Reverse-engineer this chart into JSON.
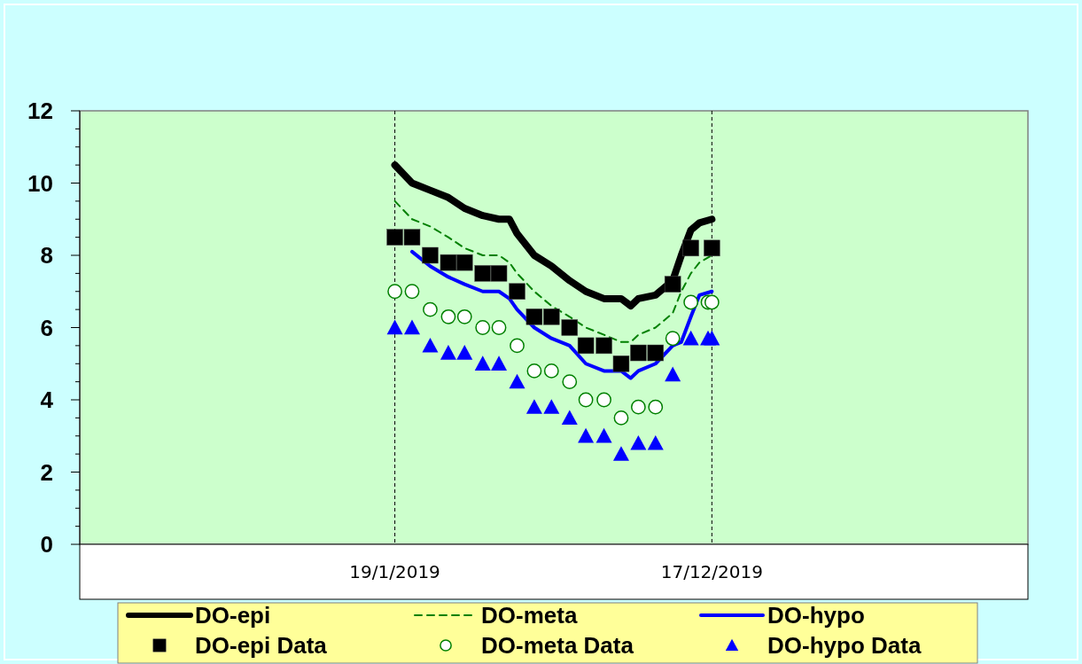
{
  "chart_data": {
    "type": "line",
    "xlim": [
      "2018-02-23",
      "2020-11-12"
    ],
    "xticks": [
      {
        "value": "2019-01-19",
        "label": "19/1/2019"
      },
      {
        "value": "2019-12-17",
        "label": "17/12/2019"
      }
    ],
    "ylim": [
      0,
      12
    ],
    "yticks": [
      0,
      {
        "value": 0.5,
        "label": null
      },
      {
        "value": 1,
        "label": null
      },
      {
        "value": 1.5,
        "label": null
      },
      2,
      {
        "value": 2.5,
        "label": null
      },
      {
        "value": 3,
        "label": null
      },
      {
        "value": 3.5,
        "label": null
      },
      4,
      {
        "value": 4.5,
        "label": null
      },
      {
        "value": 5,
        "label": null
      },
      {
        "value": 5.5,
        "label": null
      },
      6,
      {
        "value": 6.5,
        "label": null
      },
      {
        "value": 7,
        "label": null
      },
      {
        "value": 7.5,
        "label": null
      },
      8,
      {
        "value": 8.5,
        "label": null
      },
      {
        "value": 9,
        "label": null
      },
      {
        "value": 9.5,
        "label": null
      },
      10,
      {
        "value": 10.5,
        "label": null
      },
      {
        "value": 11,
        "label": null
      },
      {
        "value": 11.5,
        "label": null
      },
      12
    ],
    "grid": "x",
    "legend": "bottom",
    "series": [
      {
        "name": "DO-epi",
        "line_style": "solid",
        "color": "#000000",
        "x": [
          "2019-01-19",
          "2019-02-06",
          "2019-02-25",
          "2019-03-16",
          "2019-04-02",
          "2019-04-21",
          "2019-05-08",
          "2019-05-19",
          "2019-05-27",
          "2019-06-14",
          "2019-07-02",
          "2019-07-21",
          "2019-08-07",
          "2019-08-26",
          "2019-09-13",
          "2019-09-23",
          "2019-10-01",
          "2019-10-19",
          "2019-11-06",
          "2019-11-15",
          "2019-11-25",
          "2019-12-04",
          "2019-12-17"
        ],
        "values": [
          10.5,
          10.0,
          9.8,
          9.6,
          9.3,
          9.1,
          9.0,
          9.0,
          8.6,
          8.0,
          7.7,
          7.3,
          7.0,
          6.8,
          6.8,
          6.6,
          6.8,
          6.9,
          7.3,
          8.0,
          8.7,
          8.9,
          9.0
        ]
      },
      {
        "name": "DO-meta",
        "line_style": "dashed",
        "color": "#008000",
        "x": [
          "2019-01-19",
          "2019-02-06",
          "2019-02-25",
          "2019-03-16",
          "2019-04-02",
          "2019-04-21",
          "2019-05-08",
          "2019-05-19",
          "2019-05-27",
          "2019-06-14",
          "2019-07-02",
          "2019-07-21",
          "2019-08-07",
          "2019-08-26",
          "2019-09-13",
          "2019-09-23",
          "2019-10-01",
          "2019-10-19",
          "2019-11-06",
          "2019-11-15",
          "2019-11-25",
          "2019-12-04",
          "2019-12-17"
        ],
        "values": [
          9.5,
          9.0,
          8.8,
          8.5,
          8.2,
          8.0,
          8.0,
          7.8,
          7.5,
          7.0,
          6.6,
          6.3,
          6.0,
          5.8,
          5.6,
          5.6,
          5.8,
          6.0,
          6.4,
          7.0,
          7.5,
          7.8,
          8.0
        ]
      },
      {
        "name": "DO-hypo",
        "line_style": "solid",
        "color": "#0000ff",
        "x": [
          "2019-02-06",
          "2019-02-25",
          "2019-03-16",
          "2019-04-02",
          "2019-04-21",
          "2019-05-08",
          "2019-05-19",
          "2019-05-27",
          "2019-06-14",
          "2019-07-02",
          "2019-07-21",
          "2019-08-07",
          "2019-08-26",
          "2019-09-13",
          "2019-09-23",
          "2019-10-01",
          "2019-10-19",
          "2019-11-06",
          "2019-11-15",
          "2019-11-25",
          "2019-12-04",
          "2019-12-17"
        ],
        "values": [
          8.1,
          7.7,
          7.4,
          7.2,
          7.0,
          7.0,
          6.8,
          6.5,
          6.0,
          5.7,
          5.5,
          5.0,
          4.8,
          4.8,
          4.6,
          4.8,
          5.0,
          5.5,
          5.6,
          6.3,
          6.9,
          7.0
        ]
      },
      {
        "name": "DO-epi Data",
        "type": "scatter",
        "marker": "square",
        "color": "#000000",
        "x": [
          "2019-01-19",
          "2019-02-06",
          "2019-02-25",
          "2019-03-16",
          "2019-04-02",
          "2019-04-21",
          "2019-05-08",
          "2019-05-27",
          "2019-06-14",
          "2019-07-02",
          "2019-07-21",
          "2019-08-07",
          "2019-08-26",
          "2019-09-13",
          "2019-10-01",
          "2019-10-19",
          "2019-11-06",
          "2019-11-25",
          "2019-12-17"
        ],
        "values": [
          8.5,
          8.5,
          8.0,
          7.8,
          7.8,
          7.5,
          7.5,
          7.0,
          6.3,
          6.3,
          6.0,
          5.5,
          5.5,
          5.0,
          5.3,
          5.3,
          7.2,
          8.2,
          8.2
        ]
      },
      {
        "name": "DO-meta Data",
        "type": "scatter",
        "marker": "circle",
        "color": "#008000",
        "x": [
          "2019-01-19",
          "2019-02-06",
          "2019-02-25",
          "2019-03-16",
          "2019-04-02",
          "2019-04-21",
          "2019-05-08",
          "2019-05-27",
          "2019-06-14",
          "2019-07-02",
          "2019-07-21",
          "2019-08-07",
          "2019-08-26",
          "2019-09-13",
          "2019-10-01",
          "2019-10-19",
          "2019-11-06",
          "2019-11-25",
          "2019-12-13",
          "2019-12-17"
        ],
        "values": [
          7.0,
          7.0,
          6.5,
          6.3,
          6.3,
          6.0,
          6.0,
          5.5,
          4.8,
          4.8,
          4.5,
          4.0,
          4.0,
          3.5,
          3.8,
          3.8,
          5.7,
          6.7,
          6.7,
          6.7
        ]
      },
      {
        "name": "DO-hypo Data",
        "type": "scatter",
        "marker": "triangle",
        "color": "#0000ff",
        "x": [
          "2019-01-19",
          "2019-02-06",
          "2019-02-25",
          "2019-03-16",
          "2019-04-02",
          "2019-04-21",
          "2019-05-08",
          "2019-05-27",
          "2019-06-14",
          "2019-07-02",
          "2019-07-21",
          "2019-08-07",
          "2019-08-26",
          "2019-09-13",
          "2019-10-01",
          "2019-10-19",
          "2019-11-06",
          "2019-11-25",
          "2019-12-13",
          "2019-12-17"
        ],
        "values": [
          6.0,
          6.0,
          5.5,
          5.3,
          5.3,
          5.0,
          5.0,
          4.5,
          3.8,
          3.8,
          3.5,
          3.0,
          3.0,
          2.5,
          2.8,
          2.8,
          4.7,
          5.7,
          5.7,
          5.7
        ]
      }
    ]
  }
}
